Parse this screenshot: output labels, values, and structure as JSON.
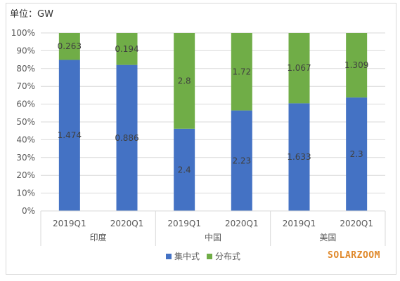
{
  "unit_label": "单位：GW",
  "brand": "SOLARZOOM",
  "colors": {
    "centralized": "#4472c4",
    "distributed": "#70ad47",
    "grid": "#d9d9d9",
    "text": "#595959"
  },
  "chart_data": {
    "type": "bar",
    "stacked": "percent",
    "title": "",
    "ylabel": "",
    "ylim": [
      0,
      100
    ],
    "yticks": [
      "0%",
      "10%",
      "20%",
      "30%",
      "40%",
      "50%",
      "60%",
      "70%",
      "80%",
      "90%",
      "100%"
    ],
    "groups": [
      {
        "label": "印度",
        "periods": [
          "2019Q1",
          "2020Q1"
        ]
      },
      {
        "label": "中国",
        "periods": [
          "2019Q1",
          "2020Q1"
        ]
      },
      {
        "label": "美国",
        "periods": [
          "2019Q1",
          "2020Q1"
        ]
      }
    ],
    "series": [
      {
        "name": "集中式",
        "color": "#4472c4",
        "labels": [
          "1.474",
          "0.886",
          "2.4",
          "2.23",
          "1.633",
          "2.3"
        ],
        "values": [
          1.474,
          0.886,
          2.4,
          2.23,
          1.633,
          2.3
        ]
      },
      {
        "name": "分布式",
        "color": "#70ad47",
        "labels": [
          "0.263",
          "0.194",
          "2.8",
          "1.72",
          "1.067",
          "1.309"
        ],
        "values": [
          0.263,
          0.194,
          2.8,
          1.72,
          1.067,
          1.309
        ]
      }
    ],
    "legend_position": "bottom",
    "grid": true
  }
}
